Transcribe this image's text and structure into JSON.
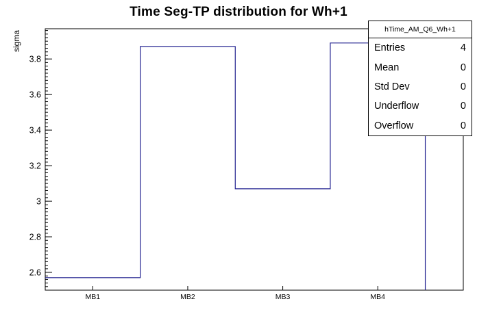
{
  "stats": {
    "name": "hTime_AM_Q6_Wh+1",
    "rows": [
      {
        "label": "Entries",
        "value": "4"
      },
      {
        "label": "Mean",
        "value": "0"
      },
      {
        "label": "Std Dev",
        "value": "0"
      },
      {
        "label": "Underflow",
        "value": "0"
      },
      {
        "label": "Overflow",
        "value": "0"
      }
    ]
  },
  "chart_data": {
    "type": "step-histogram",
    "title": "Time Seg-TP distribution for Wh+1",
    "xlabel": "",
    "ylabel": "sigma",
    "categories": [
      "MB1",
      "MB2",
      "MB3",
      "MB4"
    ],
    "values": [
      2.57,
      3.87,
      3.07,
      3.89
    ],
    "bin_edges": [
      0,
      1,
      2,
      3,
      4
    ],
    "xlim": [
      0,
      4.4
    ],
    "ylim": [
      2.5,
      3.97
    ],
    "y_major_ticks": [
      2.6,
      2.8,
      3,
      3.2,
      3.4,
      3.6,
      3.8
    ],
    "y_major_tick_labels": [
      "2.6",
      "2.8",
      "3",
      "3.2",
      "3.4",
      "3.6",
      "3.8"
    ],
    "y_minor_step": 0.02,
    "grid": false,
    "line_color": "#21218f",
    "frame_color": "#000000",
    "legend": "stats-box-top-right"
  }
}
